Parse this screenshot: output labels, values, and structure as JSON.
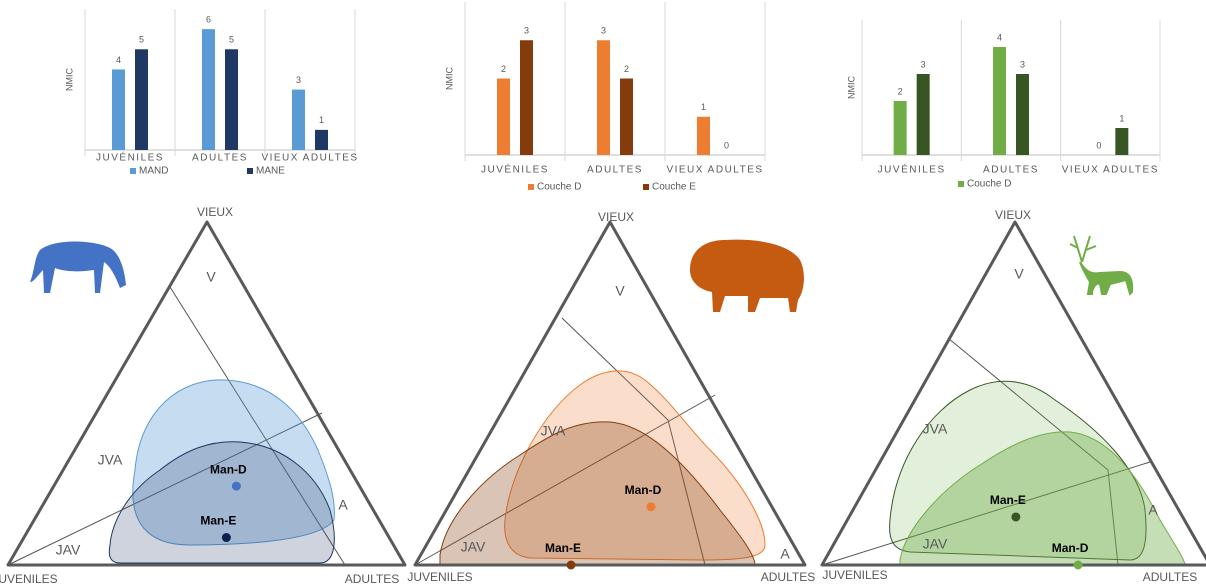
{
  "chart_data": [
    {
      "type": "bar",
      "y_label": "NMIC",
      "categories": [
        "JUVÉNILES",
        "ADULTES",
        "VIEUX ADULTES"
      ],
      "series": [
        {
          "name": "MAND",
          "color": "#5b9bd5",
          "values": [
            4,
            6,
            3
          ]
        },
        {
          "name": "MANE",
          "color": "#1f3864",
          "values": [
            5,
            5,
            1
          ]
        }
      ],
      "ylim": [
        0,
        7
      ]
    },
    {
      "type": "bar",
      "y_label": "NMIC",
      "categories": [
        "JUVÉNILES",
        "ADULTES",
        "VIEUX ADULTES"
      ],
      "series": [
        {
          "name": "Couche D",
          "color": "#ed7d31",
          "values": [
            2,
            3,
            1
          ]
        },
        {
          "name": "Couche E",
          "color": "#843c0c",
          "values": [
            3,
            2,
            0
          ]
        }
      ],
      "ylim": [
        0,
        4
      ]
    },
    {
      "type": "bar",
      "y_label": "NMIC",
      "categories": [
        "JUVÉNILES",
        "ADULTES",
        "VIEUX ADULTES"
      ],
      "series": [
        {
          "name": "Couche D",
          "color": "#70ad47",
          "values": [
            2,
            4,
            0
          ]
        },
        {
          "color": "#375623",
          "values": [
            3,
            3,
            1
          ]
        }
      ],
      "ylim": [
        0,
        5
      ]
    },
    {
      "type": "ternary",
      "vertex_labels": {
        "top": "VIEUX",
        "left": "JUVENILES",
        "right": "ADULTES"
      },
      "region_labels": [
        "V",
        "JVA",
        "JAV",
        "A"
      ],
      "points": [
        {
          "label": "Man-D",
          "color": "#4472c4",
          "values": [
            31,
            46,
            23
          ]
        },
        {
          "label": "Man-E",
          "color": "#0d1f4d",
          "values": [
            41,
            51,
            8
          ]
        }
      ]
    },
    {
      "type": "ternary",
      "vertex_labels": {
        "top": "VIEUX",
        "left": "JUVENILES",
        "right": "ADULTES"
      },
      "region_labels": [
        "V",
        "JVA",
        "JAV",
        "A"
      ],
      "points": [
        {
          "label": "Man-D",
          "color": "#ed7d31",
          "values": [
            31,
            52,
            17
          ]
        },
        {
          "label": "Man-E",
          "color": "#843c0c",
          "values": [
            60,
            40,
            0
          ]
        }
      ]
    },
    {
      "type": "ternary",
      "vertex_labels": {
        "top": "VIEUX",
        "left": "JUVENILES",
        "right": "ADULTES"
      },
      "region_labels": [
        "V",
        "JVA",
        "JAV",
        "A"
      ],
      "points": [
        {
          "label": "Man-E",
          "color": "#375623",
          "values": [
            43,
            43,
            14
          ]
        },
        {
          "label": "Man-D",
          "color": "#70ad47",
          "values": [
            34,
            66,
            0
          ]
        }
      ]
    }
  ]
}
